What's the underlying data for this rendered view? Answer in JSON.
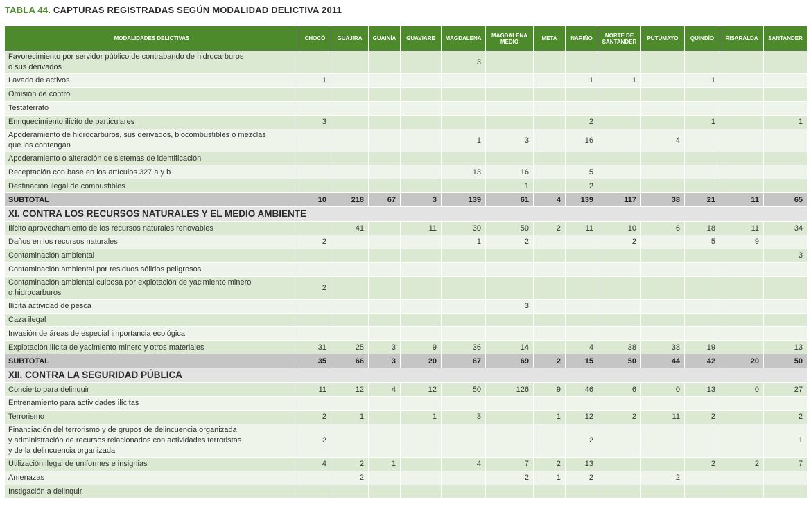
{
  "title": {
    "number": "TABLA 44.",
    "text": " CAPTURAS REGISTRADAS SEGÚN MODALIDAD DELICTIVA 2011"
  },
  "columns": [
    "MODALIDADES DELICTIVAS",
    "CHOCÓ",
    "GUAJIRA",
    "GUAINÍA",
    "GUAVIARE",
    "MAGDALENA",
    "MAGDALENA MEDIO",
    "META",
    "NARIÑO",
    "NORTE DE SANTANDER",
    "PUTUMAYO",
    "QUINDÍO",
    "RISARALDA",
    "SANTANDER"
  ],
  "rows": [
    {
      "type": "data",
      "label": "Favorecimiento por servidor público de contrabando de hidrocarburos\no sus derivados",
      "lines": 2,
      "values": [
        "",
        "",
        "",
        "",
        "3",
        "",
        "",
        "",
        "",
        "",
        "",
        "",
        ""
      ]
    },
    {
      "type": "data",
      "label": "Lavado de activos",
      "values": [
        "1",
        "",
        "",
        "",
        "",
        "",
        "",
        "1",
        "1",
        "",
        "1",
        "",
        ""
      ]
    },
    {
      "type": "data",
      "label": "Omisión de control",
      "values": [
        "",
        "",
        "",
        "",
        "",
        "",
        "",
        "",
        "",
        "",
        "",
        "",
        ""
      ]
    },
    {
      "type": "data",
      "label": "Testaferrato",
      "values": [
        "",
        "",
        "",
        "",
        "",
        "",
        "",
        "",
        "",
        "",
        "",
        "",
        ""
      ]
    },
    {
      "type": "data",
      "label": "Enriquecimiento ilícito de particulares",
      "values": [
        "3",
        "",
        "",
        "",
        "",
        "",
        "",
        "2",
        "",
        "",
        "1",
        "",
        "1"
      ]
    },
    {
      "type": "data",
      "label": "Apoderamiento de hidrocarburos, sus derivados, biocombustibles o mezclas\nque los contengan",
      "lines": 2,
      "values": [
        "",
        "",
        "",
        "",
        "1",
        "3",
        "",
        "16",
        "",
        "4",
        "",
        "",
        ""
      ]
    },
    {
      "type": "data",
      "label": "Apoderamiento o alteración de sistemas de identificación",
      "values": [
        "",
        "",
        "",
        "",
        "",
        "",
        "",
        "",
        "",
        "",
        "",
        "",
        ""
      ]
    },
    {
      "type": "data",
      "label": "Receptación con base en los artículos 327 a y b",
      "values": [
        "",
        "",
        "",
        "",
        "13",
        "16",
        "",
        "5",
        "",
        "",
        "",
        "",
        ""
      ]
    },
    {
      "type": "data",
      "label": "Destinación ilegal de combustibles",
      "values": [
        "",
        "",
        "",
        "",
        "",
        "1",
        "",
        "2",
        "",
        "",
        "",
        "",
        ""
      ]
    },
    {
      "type": "subtotal",
      "label": "SUBTOTAL",
      "values": [
        "10",
        "218",
        "67",
        "3",
        "139",
        "61",
        "4",
        "139",
        "117",
        "38",
        "21",
        "11",
        "65"
      ]
    },
    {
      "type": "section",
      "label": "XI. CONTRA LOS RECURSOS NATURALES Y EL MEDIO AMBIENTE"
    },
    {
      "type": "data",
      "label": "Ilícito aprovechamiento de los recursos naturales renovables",
      "values": [
        "",
        "41",
        "",
        "11",
        "30",
        "50",
        "2",
        "11",
        "10",
        "6",
        "18",
        "11",
        "34"
      ]
    },
    {
      "type": "data",
      "label": "Daños en los recursos naturales",
      "values": [
        "2",
        "",
        "",
        "",
        "1",
        "2",
        "",
        "",
        "2",
        "",
        "5",
        "9",
        ""
      ]
    },
    {
      "type": "data",
      "label": "Contaminación ambiental",
      "values": [
        "",
        "",
        "",
        "",
        "",
        "",
        "",
        "",
        "",
        "",
        "",
        "",
        "3"
      ]
    },
    {
      "type": "data",
      "label": "Contaminación ambiental por residuos sólidos peligrosos",
      "values": [
        "",
        "",
        "",
        "",
        "",
        "",
        "",
        "",
        "",
        "",
        "",
        "",
        ""
      ]
    },
    {
      "type": "data",
      "label": "Contaminación ambiental culposa por explotación de yacimiento minero\no hidrocarburos",
      "lines": 2,
      "values": [
        "2",
        "",
        "",
        "",
        "",
        "",
        "",
        "",
        "",
        "",
        "",
        "",
        ""
      ]
    },
    {
      "type": "data",
      "label": "Ilícita actividad de pesca",
      "values": [
        "",
        "",
        "",
        "",
        "",
        "3",
        "",
        "",
        "",
        "",
        "",
        "",
        ""
      ]
    },
    {
      "type": "data",
      "label": "Caza ilegal",
      "values": [
        "",
        "",
        "",
        "",
        "",
        "",
        "",
        "",
        "",
        "",
        "",
        "",
        ""
      ]
    },
    {
      "type": "data",
      "label": "Invasión de áreas de especial importancia ecológica",
      "values": [
        "",
        "",
        "",
        "",
        "",
        "",
        "",
        "",
        "",
        "",
        "",
        "",
        ""
      ]
    },
    {
      "type": "data",
      "label": "Explotación ilícita de yacimiento minero y otros materiales",
      "values": [
        "31",
        "25",
        "3",
        "9",
        "36",
        "14",
        "",
        "4",
        "38",
        "38",
        "19",
        "",
        "13"
      ]
    },
    {
      "type": "subtotal",
      "label": "SUBTOTAL",
      "values": [
        "35",
        "66",
        "3",
        "20",
        "67",
        "69",
        "2",
        "15",
        "50",
        "44",
        "42",
        "20",
        "50"
      ]
    },
    {
      "type": "section",
      "label": "XII. CONTRA LA SEGURIDAD PÚBLICA"
    },
    {
      "type": "data",
      "label": "Concierto para delinquir",
      "values": [
        "11",
        "12",
        "4",
        "12",
        "50",
        "126",
        "9",
        "46",
        "6",
        "0",
        "13",
        "0",
        "27"
      ]
    },
    {
      "type": "data",
      "label": "Entrenamiento para actividades ilícitas",
      "values": [
        "",
        "",
        "",
        "",
        "",
        "",
        "",
        "",
        "",
        "",
        "",
        "",
        ""
      ]
    },
    {
      "type": "data",
      "label": "Terrorismo",
      "values": [
        "2",
        "1",
        "",
        "1",
        "3",
        "",
        "1",
        "12",
        "2",
        "11",
        "2",
        "",
        "2"
      ]
    },
    {
      "type": "data",
      "label": "Financiación del terrorismo y de grupos de delincuencia organizada\ny administración de recursos relacionados con actividades terroristas\ny de la delincuencia organizada",
      "lines": 3,
      "values": [
        "2",
        "",
        "",
        "",
        "",
        "",
        "",
        "2",
        "",
        "",
        "",
        "",
        "1"
      ]
    },
    {
      "type": "data",
      "label": "Utilización ilegal de uniformes e insignias",
      "values": [
        "4",
        "2",
        "1",
        "",
        "4",
        "7",
        "2",
        "13",
        "",
        "",
        "2",
        "2",
        "7"
      ]
    },
    {
      "type": "data",
      "label": "Amenazas",
      "values": [
        "",
        "2",
        "",
        "",
        "",
        "2",
        "1",
        "2",
        "",
        "2",
        "",
        "",
        ""
      ]
    },
    {
      "type": "data",
      "label": "Instigación a delinquir",
      "values": [
        "",
        "",
        "",
        "",
        "",
        "",
        "",
        "",
        "",
        "",
        "",
        "",
        ""
      ]
    }
  ]
}
